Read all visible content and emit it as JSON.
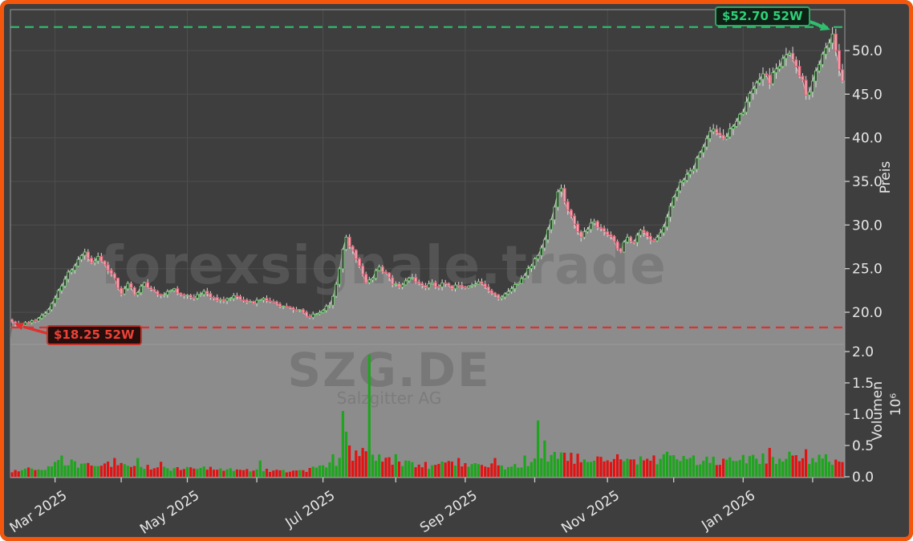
{
  "watermarks": {
    "brand": "forexsignale.trade",
    "symbol": "SZG.DE",
    "company": "Salzgitter AG"
  },
  "chart_data": {
    "type": "candlestick",
    "symbol": "SZG.DE",
    "company": "Salzgitter AG",
    "annotations": {
      "high_label": "$52.70 52W",
      "high_value": 52.7,
      "low_label": "$18.25 52W",
      "low_value": 18.25
    },
    "price_axis": {
      "label": "Preis",
      "ticks": [
        20.0,
        25.0,
        30.0,
        35.0,
        40.0,
        45.0,
        50.0
      ],
      "range": [
        16.3,
        54.7
      ]
    },
    "volume_axis": {
      "label": "Volumen",
      "exponent": "10⁶",
      "ticks": [
        0.0,
        0.5,
        1.0,
        1.5,
        2.0
      ],
      "range": [
        0,
        2.12
      ]
    },
    "x_axis": {
      "major_ticks": [
        {
          "label": "Mar 2025",
          "day": 13
        },
        {
          "label": "May 2025",
          "day": 53
        },
        {
          "label": "Jul 2025",
          "day": 94
        },
        {
          "label": "Sep 2025",
          "day": 137
        },
        {
          "label": "Nov 2025",
          "day": 180
        },
        {
          "label": "Jan 2026",
          "day": 221
        }
      ],
      "minor_tick_days": [
        33,
        74,
        116,
        158,
        200,
        242
      ]
    },
    "days": 252,
    "close_anchors": [
      [
        0,
        18.9
      ],
      [
        2,
        18.4
      ],
      [
        5,
        18.8
      ],
      [
        8,
        19.3
      ],
      [
        11,
        20.3
      ],
      [
        13,
        21.6
      ],
      [
        15,
        23.0
      ],
      [
        17,
        24.6
      ],
      [
        19,
        25.3
      ],
      [
        22,
        26.9
      ],
      [
        24,
        25.7
      ],
      [
        26,
        26.4
      ],
      [
        29,
        24.8
      ],
      [
        31,
        23.9
      ],
      [
        33,
        22.1
      ],
      [
        35,
        23.3
      ],
      [
        37,
        22.0
      ],
      [
        40,
        23.4
      ],
      [
        43,
        22.4
      ],
      [
        46,
        22.0
      ],
      [
        49,
        22.7
      ],
      [
        52,
        21.9
      ],
      [
        55,
        21.6
      ],
      [
        58,
        22.4
      ],
      [
        61,
        21.7
      ],
      [
        64,
        21.3
      ],
      [
        67,
        21.9
      ],
      [
        70,
        21.4
      ],
      [
        73,
        21.0
      ],
      [
        76,
        21.6
      ],
      [
        79,
        21.2
      ],
      [
        82,
        20.7
      ],
      [
        85,
        20.3
      ],
      [
        88,
        20.0
      ],
      [
        90,
        19.4
      ],
      [
        92,
        19.8
      ],
      [
        94,
        20.2
      ],
      [
        96,
        20.8
      ],
      [
        98,
        23.2
      ],
      [
        100,
        27.2
      ],
      [
        101,
        28.6
      ],
      [
        103,
        27.1
      ],
      [
        105,
        25.3
      ],
      [
        107,
        23.4
      ],
      [
        109,
        23.9
      ],
      [
        111,
        25.2
      ],
      [
        113,
        24.5
      ],
      [
        115,
        23.2
      ],
      [
        117,
        22.9
      ],
      [
        119,
        23.6
      ],
      [
        121,
        24.0
      ],
      [
        123,
        23.3
      ],
      [
        125,
        22.8
      ],
      [
        127,
        23.4
      ],
      [
        129,
        22.9
      ],
      [
        131,
        23.3
      ],
      [
        133,
        22.7
      ],
      [
        135,
        23.1
      ],
      [
        137,
        22.8
      ],
      [
        139,
        23.1
      ],
      [
        141,
        23.5
      ],
      [
        143,
        22.9
      ],
      [
        145,
        22.2
      ],
      [
        147,
        21.6
      ],
      [
        149,
        22.1
      ],
      [
        151,
        22.7
      ],
      [
        153,
        23.3
      ],
      [
        155,
        24.2
      ],
      [
        157,
        25.3
      ],
      [
        159,
        26.5
      ],
      [
        161,
        28.3
      ],
      [
        163,
        30.6
      ],
      [
        165,
        33.8
      ],
      [
        166,
        34.2
      ],
      [
        168,
        31.7
      ],
      [
        170,
        30.1
      ],
      [
        172,
        28.6
      ],
      [
        174,
        29.5
      ],
      [
        176,
        30.4
      ],
      [
        178,
        29.6
      ],
      [
        180,
        28.9
      ],
      [
        182,
        28.1
      ],
      [
        184,
        26.9
      ],
      [
        186,
        28.6
      ],
      [
        188,
        28.0
      ],
      [
        190,
        29.4
      ],
      [
        192,
        28.7
      ],
      [
        194,
        28.2
      ],
      [
        196,
        29.1
      ],
      [
        198,
        30.9
      ],
      [
        200,
        33.2
      ],
      [
        202,
        34.9
      ],
      [
        204,
        35.8
      ],
      [
        206,
        36.4
      ],
      [
        208,
        38.3
      ],
      [
        210,
        39.9
      ],
      [
        212,
        41.0
      ],
      [
        214,
        40.3
      ],
      [
        216,
        40.1
      ],
      [
        218,
        41.3
      ],
      [
        220,
        42.7
      ],
      [
        222,
        44.1
      ],
      [
        224,
        45.6
      ],
      [
        226,
        46.7
      ],
      [
        228,
        47.2
      ],
      [
        229,
        46.2
      ],
      [
        231,
        47.9
      ],
      [
        233,
        49.1
      ],
      [
        235,
        49.7
      ],
      [
        237,
        48.2
      ],
      [
        239,
        46.6
      ],
      [
        240,
        44.9
      ],
      [
        242,
        46.5
      ],
      [
        244,
        48.4
      ],
      [
        246,
        50.3
      ],
      [
        248,
        51.9
      ],
      [
        249,
        50.0
      ],
      [
        250,
        47.8
      ],
      [
        251,
        46.5
      ]
    ],
    "volume_anchors": [
      [
        0,
        0.1
      ],
      [
        10,
        0.14
      ],
      [
        15,
        0.24
      ],
      [
        22,
        0.18
      ],
      [
        30,
        0.2
      ],
      [
        40,
        0.16
      ],
      [
        50,
        0.12
      ],
      [
        60,
        0.13
      ],
      [
        70,
        0.11
      ],
      [
        80,
        0.1
      ],
      [
        88,
        0.09
      ],
      [
        95,
        0.18
      ],
      [
        103,
        0.34
      ],
      [
        110,
        0.3
      ],
      [
        118,
        0.24
      ],
      [
        126,
        0.18
      ],
      [
        134,
        0.2
      ],
      [
        142,
        0.18
      ],
      [
        150,
        0.14
      ],
      [
        157,
        0.26
      ],
      [
        165,
        0.32
      ],
      [
        172,
        0.28
      ],
      [
        180,
        0.25
      ],
      [
        188,
        0.26
      ],
      [
        196,
        0.28
      ],
      [
        204,
        0.27
      ],
      [
        212,
        0.24
      ],
      [
        220,
        0.27
      ],
      [
        228,
        0.3
      ],
      [
        236,
        0.27
      ],
      [
        244,
        0.28
      ],
      [
        251,
        0.24
      ]
    ],
    "volume_spikes": {
      "15": 0.34,
      "31": 0.3,
      "38": 0.3,
      "45": 0.24,
      "75": 0.26,
      "97": 0.36,
      "100": 1.05,
      "101": 0.72,
      "102": 0.5,
      "104": 0.42,
      "106": 0.46,
      "108": 1.95,
      "116": 0.36,
      "135": 0.3,
      "146": 0.3,
      "155": 0.34,
      "159": 0.9,
      "161": 0.58,
      "183": 0.36,
      "198": 0.4,
      "212": 0.32,
      "229": 0.46,
      "235": 0.4,
      "240": 0.44,
      "246": 0.36
    },
    "colors": {
      "figure_bg": "#3e3e3e",
      "border": "#f4570b",
      "area": "#8c8c8c",
      "close_line": "#d2d2d2",
      "grid": "#4e4e4e",
      "spine": "#9a9a9a",
      "tick": "#cfcfcf",
      "tick_label": "#e6e6e6",
      "up": "#72c472",
      "up_fill": "#3d3d3d",
      "down": "#dd6073",
      "down_fill": "#f2a3b0",
      "wick": "#dcdcdc",
      "vol_up": "#1da51d",
      "vol_down": "#e11212",
      "high_line": "#2fbf6f",
      "low_line": "#e03030"
    }
  }
}
